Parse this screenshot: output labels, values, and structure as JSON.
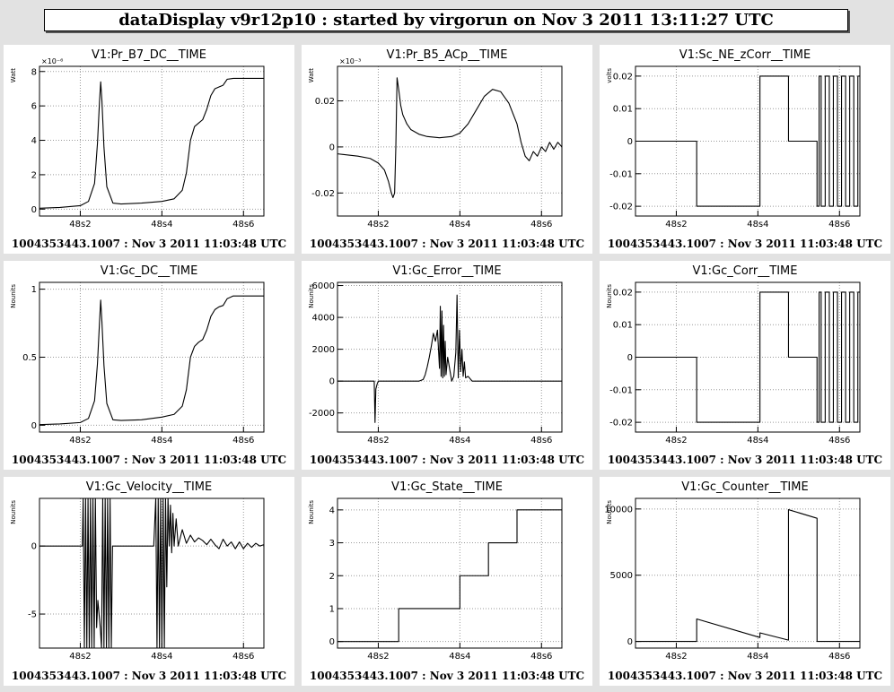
{
  "header": {
    "title": "dataDisplay v9r12p10 : started by virgorun on Nov  3 2011 13:11:27 UTC"
  },
  "colors": {
    "background": "#e2e2e2",
    "panel": "#ffffff",
    "trace": "#000000",
    "grid": "#9a9a9a"
  },
  "chart_data": [
    {
      "type": "line",
      "title": "V1:Pr_B7_DC__TIME",
      "ylabel": "Watt",
      "exponent_label": "×10⁻⁶",
      "footer": "1004353443.1007 : Nov  3 2011 11:03:48 UTC",
      "xlim": [
        48.1,
        48.65
      ],
      "ylim": [
        -0.4,
        8.3
      ],
      "x_ticks": [
        {
          "v": 48.2,
          "label": "48s2"
        },
        {
          "v": 48.4,
          "label": "48s4"
        },
        {
          "v": 48.6,
          "label": "48s6"
        }
      ],
      "y_ticks": [
        {
          "v": 0,
          "label": "0"
        },
        {
          "v": 2,
          "label": "2"
        },
        {
          "v": 4,
          "label": "4"
        },
        {
          "v": 6,
          "label": "6"
        },
        {
          "v": 8,
          "label": "8"
        }
      ],
      "series": [
        {
          "x": [
            48.1,
            48.15,
            48.2,
            48.22,
            48.235,
            48.242,
            48.247,
            48.25,
            48.253,
            48.258,
            48.265,
            48.28,
            48.3,
            48.35,
            48.4,
            48.43,
            48.45,
            48.46,
            48.47,
            48.48,
            48.49,
            48.5,
            48.51,
            48.52,
            48.53,
            48.54,
            48.55,
            48.56,
            48.575,
            48.6,
            48.65
          ],
          "y": [
            0.05,
            0.1,
            0.2,
            0.45,
            1.5,
            3.8,
            6.2,
            7.4,
            6.3,
            3.6,
            1.3,
            0.35,
            0.3,
            0.35,
            0.45,
            0.6,
            1.1,
            2.1,
            4.0,
            4.8,
            5.0,
            5.2,
            5.8,
            6.6,
            7.0,
            7.1,
            7.2,
            7.55,
            7.6,
            7.6,
            7.6
          ]
        }
      ]
    },
    {
      "type": "line",
      "title": "V1:Pr_B5_ACp__TIME",
      "ylabel": "Watt",
      "exponent_label": "×10⁻³",
      "footer": "1004353443.1007 : Nov  3 2011 11:03:48 UTC",
      "xlim": [
        48.1,
        48.65
      ],
      "ylim": [
        -0.03,
        0.035
      ],
      "x_ticks": [
        {
          "v": 48.2,
          "label": "48s2"
        },
        {
          "v": 48.4,
          "label": "48s4"
        },
        {
          "v": 48.6,
          "label": "48s6"
        }
      ],
      "y_ticks": [
        {
          "v": -0.02,
          "label": "-0.02"
        },
        {
          "v": 0,
          "label": "0"
        },
        {
          "v": 0.02,
          "label": "0.02"
        }
      ],
      "series": [
        {
          "x": [
            48.1,
            48.15,
            48.18,
            48.2,
            48.215,
            48.225,
            48.232,
            48.236,
            48.24,
            48.243,
            48.246,
            48.25,
            48.255,
            48.26,
            48.27,
            48.28,
            48.3,
            48.32,
            48.35,
            48.38,
            48.4,
            48.42,
            48.44,
            48.46,
            48.48,
            48.5,
            48.52,
            48.54,
            48.55,
            48.56,
            48.57,
            48.58,
            48.59,
            48.6,
            48.61,
            48.62,
            48.63,
            48.64,
            48.65
          ],
          "y": [
            -0.003,
            -0.004,
            -0.005,
            -0.007,
            -0.01,
            -0.015,
            -0.02,
            -0.022,
            -0.02,
            0.0,
            0.03,
            0.025,
            0.018,
            0.014,
            0.01,
            0.0075,
            0.0055,
            0.0045,
            0.004,
            0.0045,
            0.006,
            0.01,
            0.016,
            0.022,
            0.025,
            0.024,
            0.019,
            0.01,
            0.002,
            -0.004,
            -0.006,
            -0.002,
            -0.004,
            0.0,
            -0.002,
            0.002,
            -0.001,
            0.002,
            0.0
          ]
        }
      ]
    },
    {
      "type": "line",
      "title": "V1:Sc_NE_zCorr__TIME",
      "ylabel": "volts",
      "footer": "1004353443.1007 : Nov  3 2011 11:03:48 UTC",
      "xlim": [
        48.1,
        48.65
      ],
      "ylim": [
        -0.023,
        0.023
      ],
      "x_ticks": [
        {
          "v": 48.2,
          "label": "48s2"
        },
        {
          "v": 48.4,
          "label": "48s4"
        },
        {
          "v": 48.6,
          "label": "48s6"
        }
      ],
      "y_ticks": [
        {
          "v": -0.02,
          "label": "-0.02"
        },
        {
          "v": -0.01,
          "label": "-0.01"
        },
        {
          "v": 0,
          "label": "0"
        },
        {
          "v": 0.01,
          "label": "0.01"
        },
        {
          "v": 0.02,
          "label": "0.02"
        }
      ],
      "series": [
        {
          "x": [
            48.1,
            48.25,
            48.25,
            48.405,
            48.405,
            48.475,
            48.475,
            48.545,
            48.545,
            48.55,
            48.55,
            48.555,
            48.555,
            48.565,
            48.565,
            48.575,
            48.575,
            48.585,
            48.585,
            48.595,
            48.595,
            48.605,
            48.605,
            48.615,
            48.615,
            48.625,
            48.625,
            48.635,
            48.635,
            48.645,
            48.645,
            48.65
          ],
          "y": [
            0,
            0,
            -0.02,
            -0.02,
            0.02,
            0.02,
            0,
            0,
            -0.02,
            -0.02,
            0.02,
            0.02,
            -0.02,
            -0.02,
            0.02,
            0.02,
            -0.02,
            -0.02,
            0.02,
            0.02,
            -0.02,
            -0.02,
            0.02,
            0.02,
            -0.02,
            -0.02,
            0.02,
            0.02,
            -0.02,
            -0.02,
            0.02,
            0.02
          ]
        }
      ]
    },
    {
      "type": "line",
      "title": "V1:Gc_DC__TIME",
      "ylabel": "Nounits",
      "footer": "1004353443.1007 : Nov  3 2011 11:03:48 UTC",
      "xlim": [
        48.1,
        48.65
      ],
      "ylim": [
        -0.05,
        1.05
      ],
      "x_ticks": [
        {
          "v": 48.2,
          "label": "48s2"
        },
        {
          "v": 48.4,
          "label": "48s4"
        },
        {
          "v": 48.6,
          "label": "48s6"
        }
      ],
      "y_ticks": [
        {
          "v": 0,
          "label": "0"
        },
        {
          "v": 0.5,
          "label": "0.5"
        },
        {
          "v": 1,
          "label": "1"
        }
      ],
      "series": [
        {
          "x": [
            48.1,
            48.15,
            48.2,
            48.22,
            48.235,
            48.242,
            48.247,
            48.25,
            48.253,
            48.258,
            48.265,
            48.28,
            48.3,
            48.35,
            48.4,
            48.43,
            48.45,
            48.46,
            48.47,
            48.48,
            48.49,
            48.5,
            48.51,
            48.52,
            48.53,
            48.54,
            48.55,
            48.56,
            48.575,
            48.6,
            48.65
          ],
          "y": [
            0.005,
            0.01,
            0.02,
            0.05,
            0.18,
            0.45,
            0.75,
            0.92,
            0.76,
            0.44,
            0.16,
            0.04,
            0.035,
            0.04,
            0.06,
            0.08,
            0.14,
            0.26,
            0.5,
            0.58,
            0.61,
            0.63,
            0.7,
            0.8,
            0.85,
            0.87,
            0.88,
            0.93,
            0.95,
            0.95,
            0.95
          ]
        }
      ]
    },
    {
      "type": "line",
      "title": "V1:Gc_Error__TIME",
      "ylabel": "Nounits",
      "footer": "1004353443.1007 : Nov  3 2011 11:03:48 UTC",
      "xlim": [
        48.1,
        48.65
      ],
      "ylim": [
        -3200,
        6200
      ],
      "x_ticks": [
        {
          "v": 48.2,
          "label": "48s2"
        },
        {
          "v": 48.4,
          "label": "48s4"
        },
        {
          "v": 48.6,
          "label": "48s6"
        }
      ],
      "y_ticks": [
        {
          "v": -2000,
          "label": "-2000"
        },
        {
          "v": 0,
          "label": "0"
        },
        {
          "v": 2000,
          "label": "2000"
        },
        {
          "v": 4000,
          "label": "4000"
        },
        {
          "v": 6000,
          "label": "6000"
        }
      ],
      "series": [
        {
          "x": [
            48.1,
            48.15,
            48.18,
            48.19,
            48.192,
            48.194,
            48.197,
            48.2,
            48.22,
            48.25,
            48.3,
            48.31,
            48.315,
            48.32,
            48.325,
            48.33,
            48.335,
            48.34,
            48.345,
            48.35,
            48.352,
            48.354,
            48.356,
            48.358,
            48.36,
            48.362,
            48.364,
            48.366,
            48.37,
            48.38,
            48.385,
            48.39,
            48.393,
            48.396,
            48.399,
            48.402,
            48.405,
            48.408,
            48.411,
            48.414,
            48.42,
            48.43,
            48.45,
            48.5,
            48.55,
            48.6,
            48.65
          ],
          "y": [
            0,
            0,
            0,
            0,
            -2600,
            -500,
            -200,
            0,
            0,
            0,
            0,
            100,
            400,
            900,
            1500,
            2200,
            3000,
            2500,
            3200,
            800,
            4700,
            300,
            4400,
            200,
            3500,
            300,
            2500,
            400,
            1500,
            0,
            300,
            1800,
            5400,
            200,
            3200,
            600,
            2000,
            300,
            1200,
            200,
            300,
            0,
            0,
            0,
            0,
            0,
            0
          ]
        }
      ]
    },
    {
      "type": "line",
      "title": "V1:Gc_Corr__TIME",
      "ylabel": "Nounits",
      "footer": "1004353443.1007 : Nov  3 2011 11:03:48 UTC",
      "xlim": [
        48.1,
        48.65
      ],
      "ylim": [
        -0.023,
        0.023
      ],
      "x_ticks": [
        {
          "v": 48.2,
          "label": "48s2"
        },
        {
          "v": 48.4,
          "label": "48s4"
        },
        {
          "v": 48.6,
          "label": "48s6"
        }
      ],
      "y_ticks": [
        {
          "v": -0.02,
          "label": "-0.02"
        },
        {
          "v": -0.01,
          "label": "-0.01"
        },
        {
          "v": 0,
          "label": "0"
        },
        {
          "v": 0.01,
          "label": "0.01"
        },
        {
          "v": 0.02,
          "label": "0.02"
        }
      ],
      "series": [
        {
          "x": [
            48.1,
            48.25,
            48.25,
            48.405,
            48.405,
            48.475,
            48.475,
            48.545,
            48.545,
            48.55,
            48.55,
            48.555,
            48.555,
            48.565,
            48.565,
            48.575,
            48.575,
            48.585,
            48.585,
            48.595,
            48.595,
            48.605,
            48.605,
            48.615,
            48.615,
            48.625,
            48.625,
            48.635,
            48.635,
            48.645,
            48.645,
            48.65
          ],
          "y": [
            0,
            0,
            -0.02,
            -0.02,
            0.02,
            0.02,
            0,
            0,
            -0.02,
            -0.02,
            0.02,
            0.02,
            -0.02,
            -0.02,
            0.02,
            0.02,
            -0.02,
            -0.02,
            0.02,
            0.02,
            -0.02,
            -0.02,
            0.02,
            0.02,
            -0.02,
            -0.02,
            0.02,
            0.02,
            -0.02,
            -0.02,
            0.02,
            0.02
          ]
        }
      ]
    },
    {
      "type": "line",
      "title": "V1:Gc_Velocity__TIME",
      "ylabel": "Nounits",
      "footer": "1004353443.1007 : Nov  3 2011 11:03:48 UTC",
      "xlim": [
        48.1,
        48.65
      ],
      "ylim": [
        -7.5,
        3.5
      ],
      "x_ticks": [
        {
          "v": 48.2,
          "label": "48s2"
        },
        {
          "v": 48.4,
          "label": "48s4"
        },
        {
          "v": 48.6,
          "label": "48s6"
        }
      ],
      "y_ticks": [
        {
          "v": -5,
          "label": "-5"
        },
        {
          "v": 0,
          "label": "0"
        }
      ],
      "series": [
        {
          "x": [
            48.1,
            48.15,
            48.2,
            48.205,
            48.207,
            48.21,
            48.213,
            48.216,
            48.219,
            48.222,
            48.225,
            48.228,
            48.231,
            48.234,
            48.237,
            48.24,
            48.243,
            48.246,
            48.249,
            48.252,
            48.255,
            48.258,
            48.261,
            48.264,
            48.267,
            48.27,
            48.273,
            48.276,
            48.279,
            48.282,
            48.285,
            48.3,
            48.35,
            48.38,
            48.385,
            48.388,
            48.391,
            48.394,
            48.397,
            48.4,
            48.403,
            48.406,
            48.409,
            48.412,
            48.415,
            48.418,
            48.421,
            48.424,
            48.427,
            48.43,
            48.435,
            48.44,
            48.45,
            48.46,
            48.47,
            48.48,
            48.49,
            48.5,
            48.51,
            48.52,
            48.53,
            48.54,
            48.55,
            48.56,
            48.57,
            48.58,
            48.59,
            48.6,
            48.61,
            48.62,
            48.63,
            48.64,
            48.65
          ],
          "y": [
            0,
            0,
            0,
            0,
            3.5,
            -7.5,
            3.5,
            -7.5,
            3.5,
            -7.5,
            3.5,
            -7.5,
            3.5,
            -7.5,
            3.5,
            -6,
            -4,
            -5,
            -6,
            -7.5,
            3.5,
            -7.5,
            3.5,
            -7.5,
            3.5,
            -7.5,
            3.5,
            -7.5,
            0,
            0,
            0,
            0,
            0,
            0,
            3.5,
            -7.5,
            3.5,
            -7.5,
            3.5,
            -7.5,
            3.5,
            -7.5,
            3.5,
            -3,
            3.5,
            0,
            3.0,
            -0.5,
            2.4,
            0,
            2,
            0,
            1.2,
            0.2,
            0.8,
            0.3,
            0.6,
            0.4,
            0.1,
            0.5,
            0.1,
            -0.2,
            0.5,
            0,
            0.3,
            -0.2,
            0.3,
            -0.2,
            0.2,
            -0.1,
            0.2,
            0,
            0.1
          ]
        }
      ]
    },
    {
      "type": "line",
      "title": "V1:Gc_State__TIME",
      "ylabel": "Nounits",
      "footer": "1004353443.1007 : Nov  3 2011 11:03:48 UTC",
      "xlim": [
        48.1,
        48.65
      ],
      "ylim": [
        -0.2,
        4.35
      ],
      "x_ticks": [
        {
          "v": 48.2,
          "label": "48s2"
        },
        {
          "v": 48.4,
          "label": "48s4"
        },
        {
          "v": 48.6,
          "label": "48s6"
        }
      ],
      "y_ticks": [
        {
          "v": 0,
          "label": "0"
        },
        {
          "v": 1,
          "label": "1"
        },
        {
          "v": 2,
          "label": "2"
        },
        {
          "v": 3,
          "label": "3"
        },
        {
          "v": 4,
          "label": "4"
        }
      ],
      "series": [
        {
          "x": [
            48.1,
            48.25,
            48.25,
            48.4,
            48.4,
            48.47,
            48.47,
            48.54,
            48.54,
            48.65
          ],
          "y": [
            0,
            0,
            1,
            1,
            2,
            2,
            3,
            3,
            4,
            4
          ]
        }
      ]
    },
    {
      "type": "line",
      "title": "V1:Gc_Counter__TIME",
      "ylabel": "Nounits",
      "footer": "1004353443.1007 : Nov  3 2011 11:03:48 UTC",
      "xlim": [
        48.1,
        48.65
      ],
      "ylim": [
        -500,
        10800
      ],
      "x_ticks": [
        {
          "v": 48.2,
          "label": "48s2"
        },
        {
          "v": 48.4,
          "label": "48s4"
        },
        {
          "v": 48.6,
          "label": "48s6"
        }
      ],
      "y_ticks": [
        {
          "v": 0,
          "label": "0"
        },
        {
          "v": 5000,
          "label": "5000"
        },
        {
          "v": 10000,
          "label": "10000"
        }
      ],
      "series": [
        {
          "x": [
            48.1,
            48.25,
            48.25,
            48.405,
            48.405,
            48.475,
            48.475,
            48.545,
            48.545,
            48.65
          ],
          "y": [
            0,
            0,
            1700,
            300,
            650,
            100,
            9950,
            9300,
            0,
            0
          ]
        }
      ]
    }
  ]
}
